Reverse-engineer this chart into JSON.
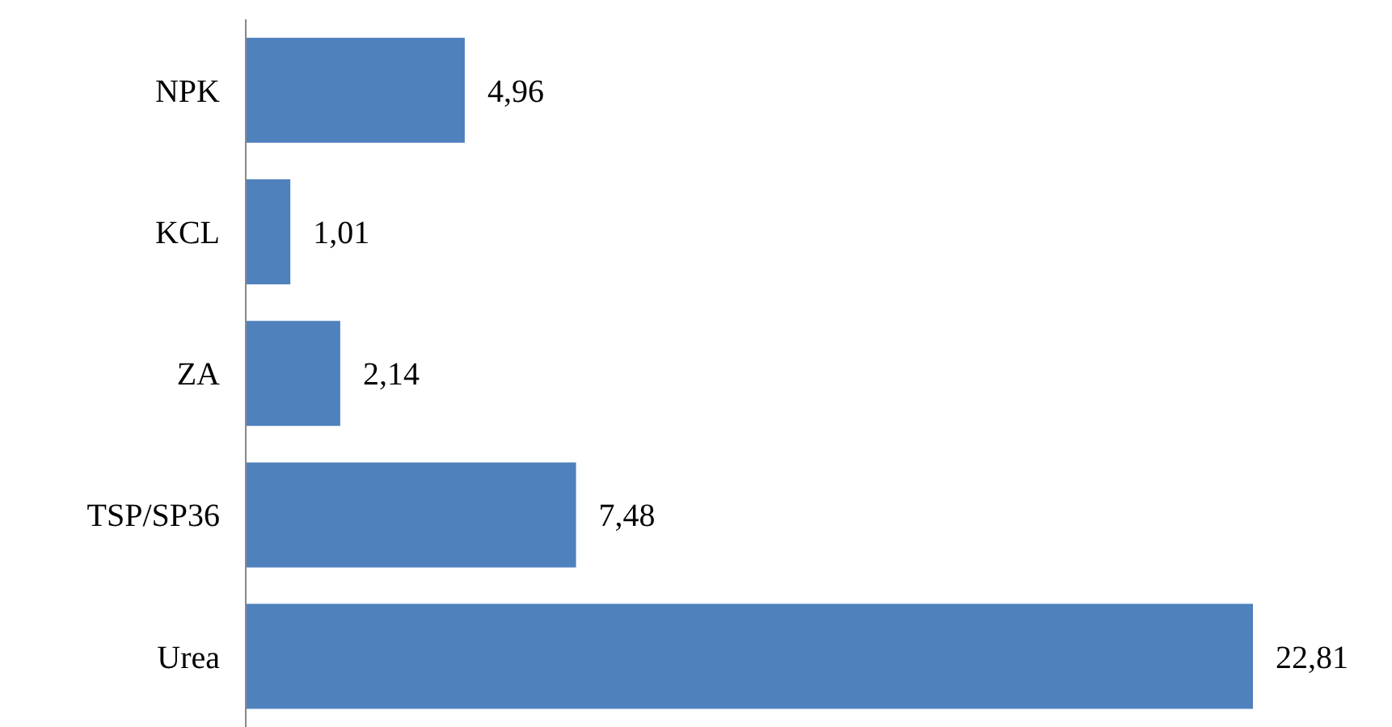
{
  "chart_data": {
    "type": "bar",
    "orientation": "horizontal",
    "categories": [
      "NPK",
      "KCL",
      "ZA",
      "TSP/SP36",
      "Urea"
    ],
    "values": [
      4.96,
      1.01,
      2.14,
      7.48,
      22.81
    ],
    "value_labels": [
      "4,96",
      "1,01",
      "2,14",
      "7,48",
      "22,81"
    ],
    "color": "#4f81bd",
    "grid": false,
    "legend": false
  }
}
